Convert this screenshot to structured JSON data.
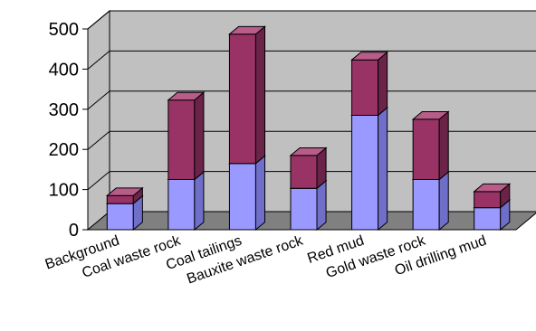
{
  "chart_data": {
    "type": "bar",
    "stacked": true,
    "three_d": true,
    "categories": [
      "Background",
      "Coal waste rock",
      "Coal tailings",
      "Bauxite waste rock",
      "Red mud",
      "Gold waste rock",
      "Oil drilling mud"
    ],
    "series": [
      {
        "values": [
          65,
          125,
          165,
          103,
          285,
          125,
          55
        ]
      },
      {
        "values": [
          20,
          198,
          322,
          82,
          138,
          150,
          40
        ]
      }
    ],
    "ylim": [
      0,
      500
    ],
    "yticks": [
      "0",
      "100",
      "200",
      "300",
      "400",
      "500"
    ],
    "title": "",
    "xlabel": "",
    "ylabel": "",
    "grid": true,
    "legend": "none",
    "colors": {
      "series0_front": "#9999ff",
      "series0_side": "#6f6fc9",
      "series0_top": "#c3c3ff",
      "series1_front": "#993366",
      "series1_side": "#6b2347",
      "series1_top": "#b85c89",
      "wall": "#c0c0c0",
      "floor": "#808080"
    }
  }
}
